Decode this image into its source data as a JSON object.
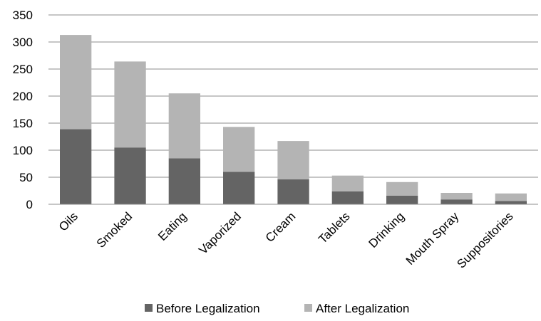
{
  "chart_data": {
    "type": "bar",
    "stacked": true,
    "categories": [
      "Oils",
      "Smoked",
      "Eating",
      "Vaporized",
      "Cream",
      "Tablets",
      "Drinking",
      "Mouth Spray",
      "Suppositories"
    ],
    "series": [
      {
        "name": "Before Legalization",
        "color": "#646464",
        "values": [
          139,
          105,
          85,
          60,
          46,
          24,
          16,
          9,
          6
        ]
      },
      {
        "name": "After Legalization",
        "color": "#b4b4b4",
        "values": [
          174,
          159,
          120,
          83,
          71,
          29,
          25,
          12,
          14
        ]
      }
    ],
    "ylim": [
      0,
      350
    ],
    "yticks": [
      0,
      50,
      100,
      150,
      200,
      250,
      300,
      350
    ],
    "grid": true,
    "legend_position": "bottom"
  }
}
